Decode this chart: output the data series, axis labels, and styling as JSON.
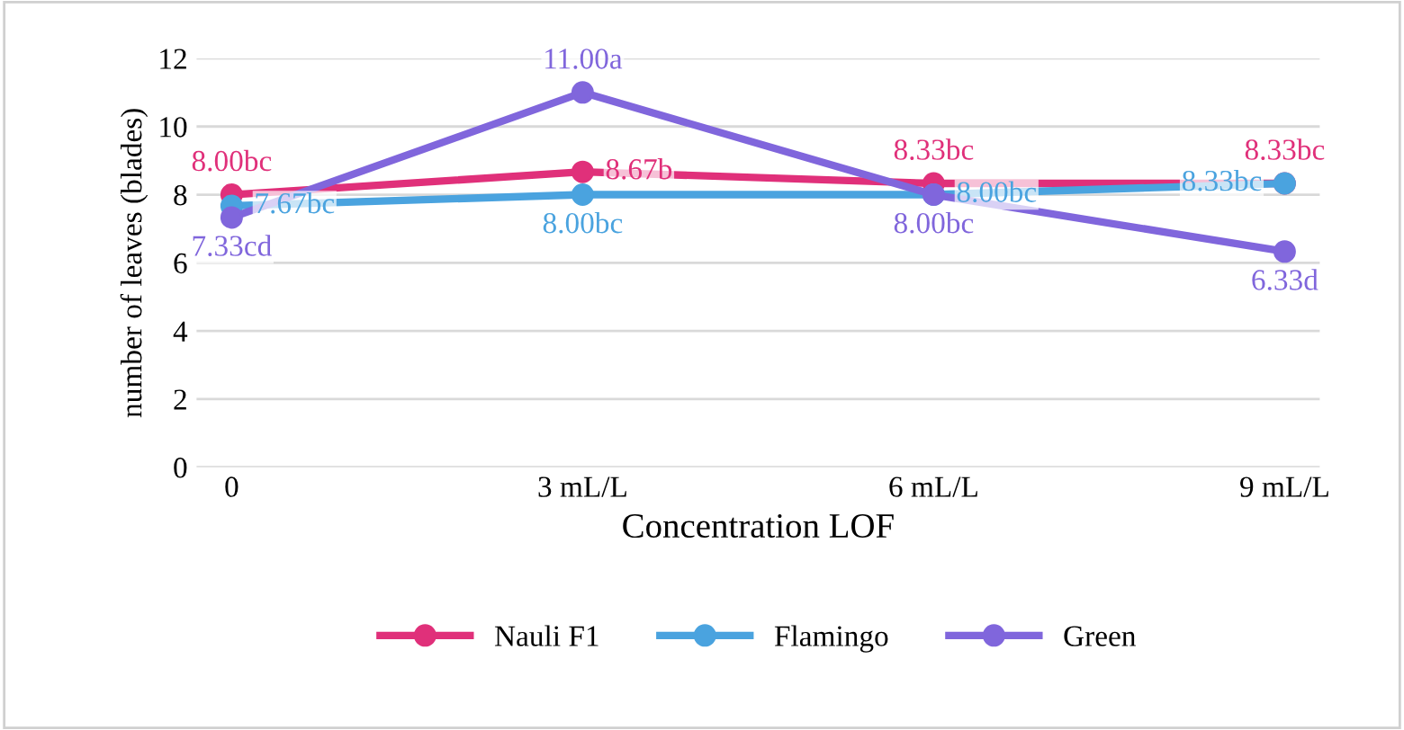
{
  "chart_data": {
    "type": "line",
    "xlabel": "Concentration LOF",
    "ylabel": "number of leaves (blades)",
    "categories": [
      "0",
      "3 mL/L",
      "6 mL/L",
      "9 mL/L"
    ],
    "series": [
      {
        "name": "Nauli F1",
        "color": "#e0307a",
        "values": [
          8.0,
          8.67,
          8.33,
          8.33
        ],
        "value_labels": [
          "8.00bc",
          "8.67b",
          "8.33bc",
          "8.33bc"
        ]
      },
      {
        "name": "Flamingo",
        "color": "#4aa3df",
        "values": [
          7.67,
          8.0,
          8.0,
          8.33
        ],
        "value_labels": [
          "7.67bc",
          "8.00bc",
          "8.00bc",
          "8.33bc"
        ]
      },
      {
        "name": "Green",
        "color": "#8066dc",
        "values": [
          7.33,
          11.0,
          8.0,
          6.33
        ],
        "value_labels": [
          "7.33cd",
          "11.00a",
          "8.00bc",
          "6.33d"
        ]
      }
    ],
    "ylim": [
      0,
      12
    ],
    "yticks": [
      0,
      2,
      4,
      6,
      8,
      10,
      12
    ],
    "grid": "y",
    "legend": "bottom",
    "marker": "circle",
    "line_style": "solid"
  }
}
